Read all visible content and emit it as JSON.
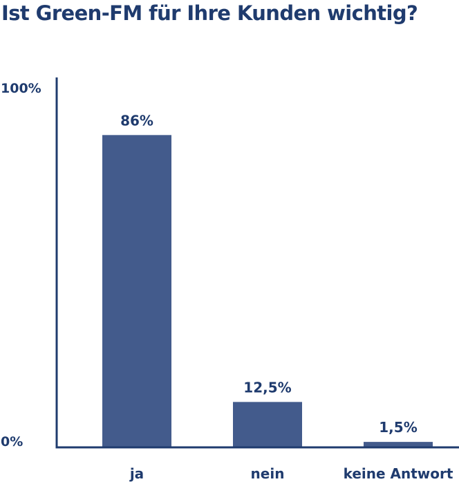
{
  "chart_data": {
    "type": "bar",
    "title": "Ist Green-FM für Ihre Kunden wichtig?",
    "categories": [
      "ja",
      "nein",
      "keine Antwort"
    ],
    "values": [
      86,
      12.5,
      1.5
    ],
    "value_labels": [
      "86%",
      "12,5%",
      "1,5%"
    ],
    "ylim": [
      0,
      100
    ],
    "y_tick_labels": [
      "0%",
      "100%"
    ],
    "xlabel": "",
    "ylabel": "",
    "grid": false,
    "legend": "none",
    "colors": {
      "bar": "#435b8c",
      "text": "#1f3b6e",
      "axis": "#1f3b6e"
    }
  }
}
